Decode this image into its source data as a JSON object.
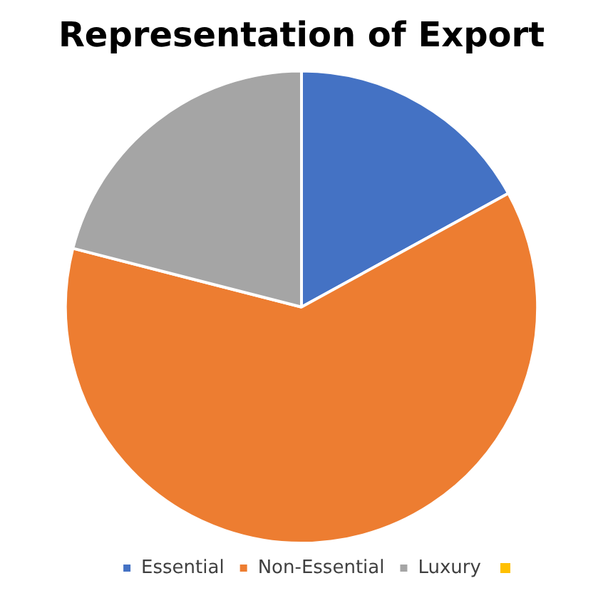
{
  "chart_data": {
    "type": "pie",
    "title": "Representation of Export",
    "categories": [
      "Essential",
      "Non-Essential",
      "Luxury"
    ],
    "values": [
      17,
      62,
      21
    ],
    "colors": [
      "#4472c4",
      "#ed7d31",
      "#a5a5a5"
    ],
    "legend": "bottom"
  }
}
